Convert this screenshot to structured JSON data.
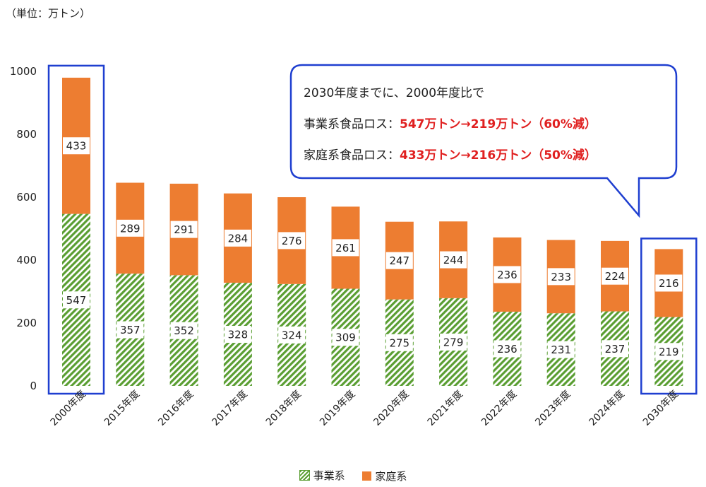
{
  "unit_label": "（単位：万トン）",
  "callout": {
    "line1": "2030年度までに、2000年度比で",
    "line2_label": "事業系食品ロス：",
    "line2_value": "547万トン→219万トン（60%減）",
    "line3_label": "家庭系食品ロス：",
    "line3_value": "433万トン→216万トン（50%減）"
  },
  "colors": {
    "business": "#5a9e32",
    "household": "#ed7d31",
    "highlight": "#1f3fd0"
  },
  "chart_data": {
    "type": "bar",
    "stacked": true,
    "categories": [
      "2000年度",
      "2015年度",
      "2016年度",
      "2017年度",
      "2018年度",
      "2019年度",
      "2020年度",
      "2021年度",
      "2022年度",
      "2023年度",
      "2024年度",
      "2030年度"
    ],
    "series": [
      {
        "name": "事業系",
        "values": [
          547,
          357,
          352,
          328,
          324,
          309,
          275,
          279,
          236,
          231,
          237,
          219
        ]
      },
      {
        "name": "家庭系",
        "values": [
          433,
          289,
          291,
          284,
          276,
          261,
          247,
          244,
          236,
          233,
          224,
          216
        ]
      }
    ],
    "ylim": [
      0,
      1000
    ],
    "yticks": [
      "0",
      "200",
      "400",
      "600",
      "800",
      "1000"
    ],
    "highlighted_categories": [
      "2000年度",
      "2030年度"
    ],
    "legend_position": "bottom",
    "grid": false
  }
}
